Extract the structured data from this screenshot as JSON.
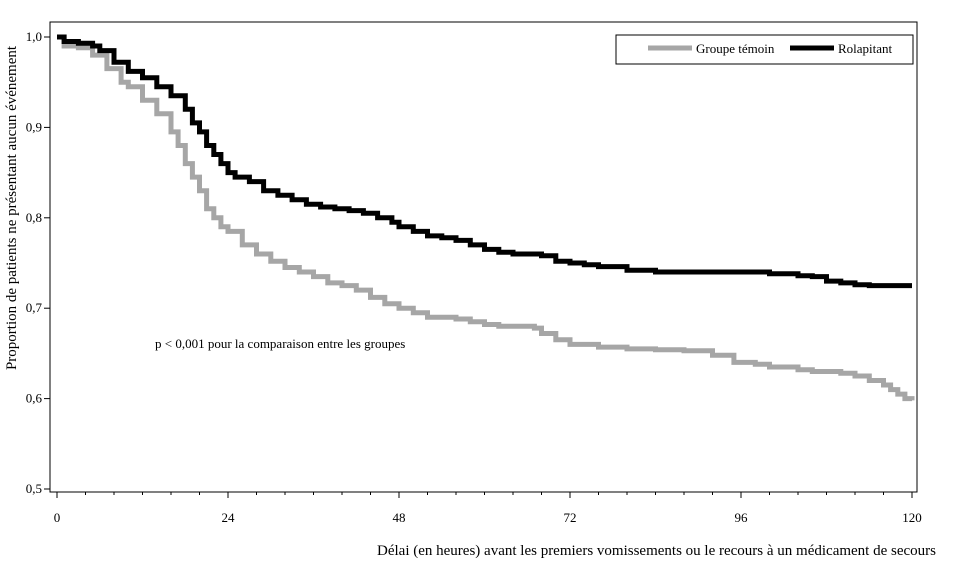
{
  "chart_data": {
    "type": "line",
    "title": "",
    "xlabel": "Délai (en heures) avant les premiers vomissements ou le recours à un médicament de secours",
    "ylabel": "Proportion de patients ne présentant aucun événement",
    "xlim": [
      0,
      120
    ],
    "ylim": [
      0.5,
      1.0
    ],
    "x_ticks": [
      0,
      24,
      48,
      72,
      96,
      120
    ],
    "y_ticks": [
      0.5,
      0.6,
      0.7,
      0.8,
      0.9,
      1.0
    ],
    "x_tick_labels": [
      "0",
      "24",
      "48",
      "72",
      "96",
      "120"
    ],
    "y_tick_labels": [
      "0,5",
      "0,6",
      "0,7",
      "0,8",
      "0,9",
      "1,0"
    ],
    "grid": false,
    "legend_position": "top-right",
    "annotation": "p < 0,001 pour la comparaison entre les groupes",
    "series": [
      {
        "name": "Groupe témoin",
        "color": "#a6a6a6",
        "x": [
          0,
          1,
          3,
          5,
          7,
          9,
          10,
          12,
          14,
          16,
          17,
          18,
          19,
          20,
          21,
          22,
          23,
          24,
          26,
          28,
          30,
          32,
          34,
          36,
          38,
          40,
          42,
          44,
          46,
          48,
          50,
          52,
          54,
          56,
          58,
          60,
          62,
          64,
          66,
          67,
          68,
          70,
          72,
          76,
          80,
          84,
          88,
          92,
          95,
          98,
          100,
          104,
          106,
          108,
          110,
          112,
          114,
          116,
          117,
          118,
          119,
          120
        ],
        "y": [
          1.0,
          0.99,
          0.988,
          0.98,
          0.965,
          0.95,
          0.945,
          0.93,
          0.915,
          0.895,
          0.88,
          0.86,
          0.845,
          0.83,
          0.81,
          0.8,
          0.79,
          0.785,
          0.77,
          0.76,
          0.752,
          0.745,
          0.74,
          0.735,
          0.728,
          0.725,
          0.72,
          0.712,
          0.705,
          0.7,
          0.695,
          0.69,
          0.69,
          0.688,
          0.685,
          0.682,
          0.68,
          0.68,
          0.68,
          0.678,
          0.672,
          0.665,
          0.66,
          0.657,
          0.655,
          0.654,
          0.653,
          0.648,
          0.64,
          0.638,
          0.635,
          0.632,
          0.63,
          0.63,
          0.628,
          0.625,
          0.62,
          0.615,
          0.61,
          0.605,
          0.6,
          0.598
        ]
      },
      {
        "name": "Rolapitant",
        "color": "#000000",
        "x": [
          0,
          1,
          3,
          5,
          6,
          8,
          10,
          12,
          14,
          16,
          18,
          19,
          20,
          21,
          22,
          23,
          24,
          25,
          27,
          29,
          31,
          33,
          35,
          37,
          39,
          41,
          43,
          45,
          47,
          48,
          50,
          52,
          54,
          56,
          58,
          60,
          62,
          64,
          66,
          68,
          70,
          72,
          74,
          76,
          80,
          84,
          88,
          92,
          96,
          100,
          104,
          106,
          108,
          110,
          112,
          114,
          116,
          118,
          120
        ],
        "y": [
          1.0,
          0.995,
          0.993,
          0.99,
          0.985,
          0.972,
          0.962,
          0.955,
          0.945,
          0.935,
          0.92,
          0.905,
          0.895,
          0.88,
          0.87,
          0.86,
          0.85,
          0.845,
          0.84,
          0.83,
          0.825,
          0.82,
          0.815,
          0.812,
          0.81,
          0.808,
          0.805,
          0.8,
          0.795,
          0.79,
          0.785,
          0.78,
          0.778,
          0.775,
          0.77,
          0.765,
          0.762,
          0.76,
          0.76,
          0.758,
          0.752,
          0.75,
          0.748,
          0.746,
          0.742,
          0.74,
          0.74,
          0.74,
          0.74,
          0.738,
          0.736,
          0.735,
          0.73,
          0.728,
          0.726,
          0.725,
          0.725,
          0.725,
          0.725
        ]
      }
    ]
  }
}
